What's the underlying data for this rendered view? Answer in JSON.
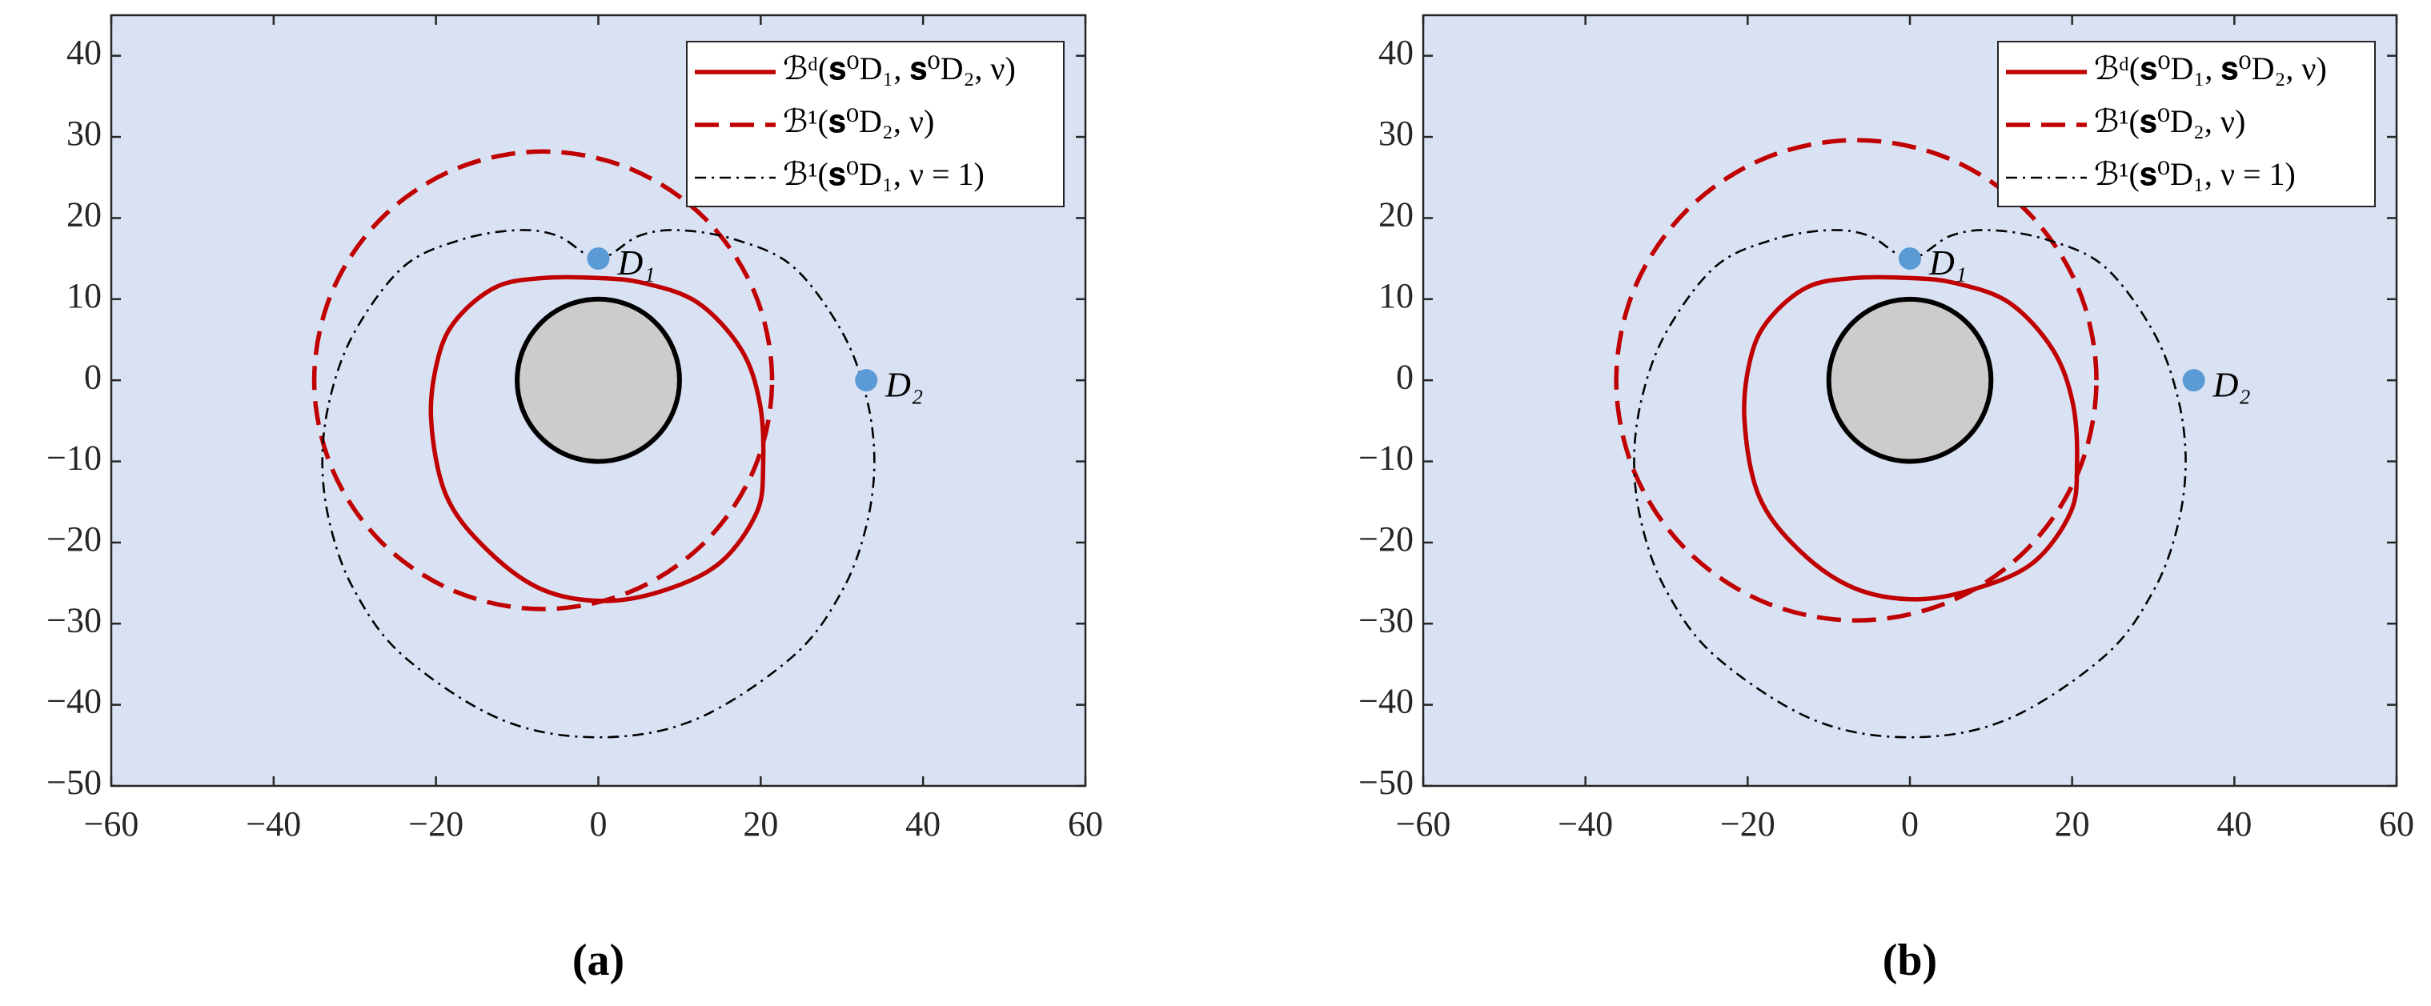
{
  "chart_data": [
    {
      "type": "line",
      "caption": "(a)",
      "xlim": [
        -60,
        60
      ],
      "ylim": [
        -50,
        45
      ],
      "xticks": [
        {
          "value": -60,
          "label": "−60"
        },
        {
          "value": -40,
          "label": "−40"
        },
        {
          "value": -20,
          "label": "−20"
        },
        0,
        20,
        40,
        60
      ],
      "yticks": [
        {
          "value": -50,
          "label": "−50"
        },
        {
          "value": -40,
          "label": "−40"
        },
        {
          "value": -30,
          "label": "−30"
        },
        {
          "value": -20,
          "label": "−20"
        },
        {
          "value": -10,
          "label": "−10"
        },
        0,
        10,
        20,
        30,
        40
      ],
      "legend": "upper right",
      "background": "#d9e2f3",
      "obstacle": {
        "x": 0,
        "y": 0,
        "radius": 10,
        "color": "#cccccc"
      },
      "series": [
        {
          "name": "ℬᵈ(𝐬⁰D₁, 𝐬⁰D₂, ν)",
          "color": "#c00000",
          "style": "solid",
          "x": [
            -6.9,
            0,
            5.5,
            12.2,
            17.6,
            19.9,
            20.3,
            19.5,
            15.1,
            8.4,
            0.8,
            -6.9,
            -13.6,
            -18.7,
            -20.6,
            -19.7,
            -17.4,
            -12.6,
            -6.9
          ],
          "y": [
            12.6,
            12.6,
            12.0,
            9.6,
            3.8,
            -2.9,
            -10.5,
            -16.3,
            -22.4,
            -25.8,
            -27.2,
            -25.8,
            -21,
            -14.3,
            -4.8,
            2.9,
            7.6,
            11.5,
            12.6
          ]
        },
        {
          "name": "ℬ¹(𝐬⁰D₂, ν)",
          "color": "#c00000",
          "style": "dashed",
          "x": [
            21.4,
            19.25,
            13.14,
            3.99,
            -6.8,
            -17.59,
            -26.74,
            -32.85,
            -35,
            -32.85,
            -26.74,
            -17.59,
            -6.8,
            3.99,
            13.14,
            19.25,
            21.4
          ],
          "y": [
            0,
            10.79,
            19.94,
            26.05,
            28.2,
            26.05,
            19.94,
            10.79,
            0,
            -10.79,
            -19.94,
            -26.05,
            -28.2,
            -26.05,
            -19.94,
            -10.79,
            0
          ]
        },
        {
          "name": "ℬ¹(𝐬⁰D₁, ν = 1)",
          "color": "#000000",
          "style": "dashdot",
          "x": [
            0,
            -5,
            -10,
            -17,
            -24,
            -30,
            -33,
            -34,
            -33,
            -30,
            -24,
            -12,
            0,
            12,
            24,
            30,
            33,
            34,
            33,
            30,
            24,
            17,
            10,
            5,
            0
          ],
          "y": [
            15,
            17.8,
            18.5,
            17.3,
            14,
            6,
            -2,
            -10,
            -18,
            -26,
            -34,
            -41.8,
            -44,
            -41.8,
            -34,
            -26,
            -18,
            -10,
            -2,
            6,
            14,
            17.3,
            18.5,
            17.8,
            15
          ]
        }
      ],
      "points": [
        {
          "label": "D₁",
          "x": 0,
          "y": 15
        },
        {
          "label": "D₂",
          "x": 33,
          "y": 0
        }
      ],
      "point_color": "#5b9bd5"
    },
    {
      "type": "line",
      "caption": "(b)",
      "xlim": [
        -60,
        60
      ],
      "ylim": [
        -50,
        45
      ],
      "xticks": [
        {
          "value": -60,
          "label": "−60"
        },
        {
          "value": -40,
          "label": "−40"
        },
        {
          "value": -20,
          "label": "−20"
        },
        0,
        20,
        40,
        60
      ],
      "yticks": [
        {
          "value": -50,
          "label": "−50"
        },
        {
          "value": -40,
          "label": "−40"
        },
        {
          "value": -30,
          "label": "−30"
        },
        {
          "value": -20,
          "label": "−20"
        },
        {
          "value": -10,
          "label": "−10"
        },
        0,
        10,
        20,
        30,
        40
      ],
      "legend": "upper right",
      "background": "#d9e2f3",
      "obstacle": {
        "x": 0,
        "y": 0,
        "radius": 10,
        "color": "#cccccc"
      },
      "series": [
        {
          "name": "ℬᵈ(𝐬⁰D₁, 𝐬⁰D₂, ν)",
          "color": "#c00000",
          "style": "solid",
          "x": [
            -6.9,
            0,
            5.5,
            12.2,
            17.6,
            20.1,
            20.6,
            19.8,
            15.3,
            8.4,
            0.8,
            -6.9,
            -13.6,
            -18.6,
            -20.4,
            -19.6,
            -17.3,
            -12.6,
            -6.9
          ],
          "y": [
            12.6,
            12.6,
            12.0,
            9.6,
            3.8,
            -2.9,
            -10.5,
            -16.3,
            -22.4,
            -25.6,
            -27.0,
            -25.6,
            -21,
            -14.3,
            -4.8,
            2.9,
            7.6,
            11.5,
            12.6
          ]
        },
        {
          "name": "ℬ¹(𝐬⁰D₂, ν)",
          "color": "#c00000",
          "style": "dashed",
          "x": [
            23,
            20.75,
            14.33,
            4.74,
            -6.6,
            -17.94,
            -27.53,
            -33.95,
            -36.2,
            -33.95,
            -27.53,
            -17.94,
            -6.6,
            4.74,
            14.33,
            20.75,
            23
          ],
          "y": [
            0,
            11.34,
            20.93,
            27.35,
            29.6,
            27.35,
            20.93,
            11.34,
            0,
            -11.34,
            -20.93,
            -27.35,
            -29.6,
            -27.35,
            -20.93,
            -11.34,
            0
          ]
        },
        {
          "name": "ℬ¹(𝐬⁰D₁, ν = 1)",
          "color": "#000000",
          "style": "dashdot",
          "x": [
            0,
            -5,
            -10,
            -17,
            -24,
            -30,
            -33,
            -34,
            -33,
            -30,
            -24,
            -12,
            0,
            12,
            24,
            30,
            33,
            34,
            33,
            30,
            24,
            17,
            10,
            5,
            0
          ],
          "y": [
            15,
            17.8,
            18.5,
            17.3,
            14,
            6,
            -2,
            -10,
            -18,
            -26,
            -34,
            -41.8,
            -44,
            -41.8,
            -34,
            -26,
            -18,
            -10,
            -2,
            6,
            14,
            17.3,
            18.5,
            17.8,
            15
          ]
        }
      ],
      "points": [
        {
          "label": "D₁",
          "x": 0,
          "y": 15
        },
        {
          "label": "D₂",
          "x": 35,
          "y": 0
        }
      ],
      "point_color": "#5b9bd5"
    }
  ]
}
